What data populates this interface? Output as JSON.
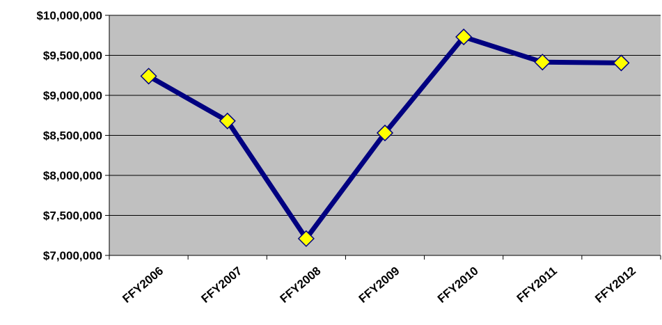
{
  "chart_data": {
    "type": "line",
    "title": "",
    "xlabel": "",
    "ylabel": "",
    "categories": [
      "FFY2006",
      "FFY2007",
      "FFY2008",
      "FFY2009",
      "FFY2010",
      "FFY2011",
      "FFY2012"
    ],
    "series": [
      {
        "values": [
          9240000,
          8680000,
          7210000,
          8530000,
          9730000,
          9415000,
          9405000
        ]
      }
    ],
    "ylim": [
      7000000,
      10000000
    ],
    "ytick_labels": [
      "$10,000,000",
      "$9,500,000",
      "$9,000,000",
      "$8,500,000",
      "$8,000,000",
      "$7,500,000",
      "$7,000,000"
    ],
    "grid": true,
    "legend": "none",
    "colors": {
      "plot_area": "#C0C0C0",
      "line": "#000080",
      "marker_fill": "#FFFF00",
      "marker_stroke": "#000080",
      "gridline": "#000000"
    }
  }
}
